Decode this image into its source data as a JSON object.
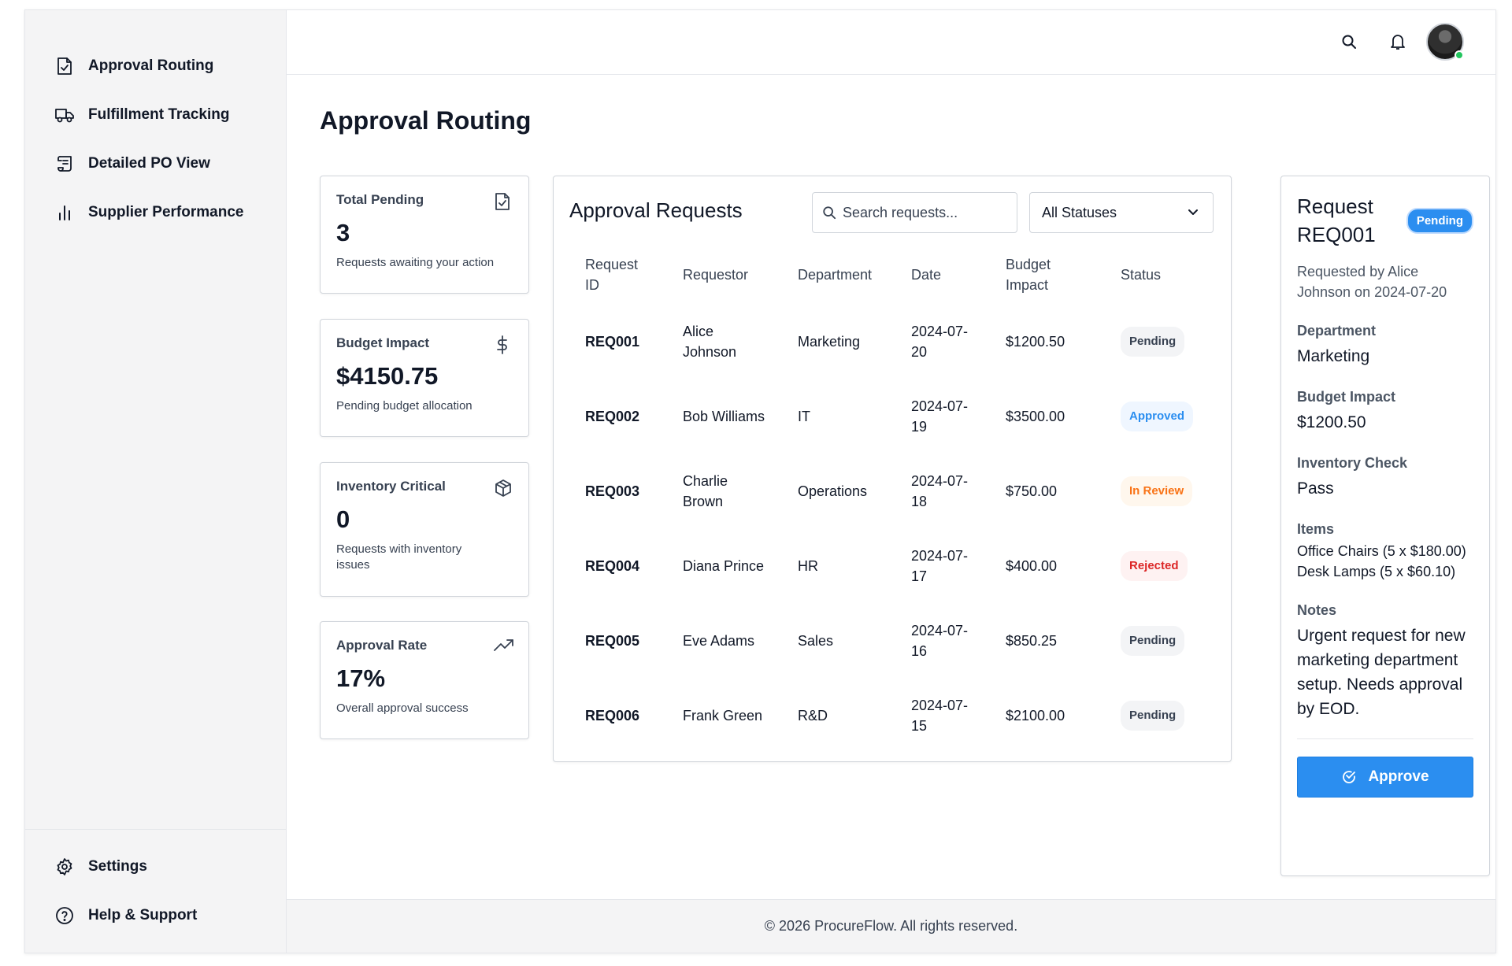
{
  "sidebar": {
    "items": [
      {
        "label": "Approval Routing",
        "icon": "file-check-icon"
      },
      {
        "label": "Fulfillment Tracking",
        "icon": "truck-icon"
      },
      {
        "label": "Detailed PO View",
        "icon": "scroll-icon"
      },
      {
        "label": "Supplier Performance",
        "icon": "bar-chart-icon"
      }
    ],
    "bottom": [
      {
        "label": "Settings",
        "icon": "gear-icon"
      },
      {
        "label": "Help & Support",
        "icon": "help-circle-icon"
      }
    ]
  },
  "header": {
    "search_icon": "search-icon",
    "notifications_icon": "bell-icon",
    "avatar_status_color": "#22c55e"
  },
  "page": {
    "title": "Approval Routing"
  },
  "stats": [
    {
      "title": "Total Pending",
      "value": "3",
      "desc": "Requests awaiting your action",
      "icon": "file-check-icon"
    },
    {
      "title": "Budget Impact",
      "value": "$4150.75",
      "desc": "Pending budget allocation",
      "icon": "dollar-icon"
    },
    {
      "title": "Inventory Critical",
      "value": "0",
      "desc": "Requests with inventory issues",
      "icon": "box-icon"
    },
    {
      "title": "Approval Rate",
      "value": "17%",
      "desc": "Overall approval success",
      "icon": "trending-up-icon"
    }
  ],
  "requests": {
    "title": "Approval Requests",
    "search_placeholder": "Search requests...",
    "status_filter": "All Statuses",
    "columns": [
      "Request ID",
      "Requestor",
      "Department",
      "Date",
      "Budget Impact",
      "Status"
    ],
    "rows": [
      {
        "id": "REQ001",
        "requestor": "Alice Johnson",
        "department": "Marketing",
        "date": "2024-07-20",
        "budget": "$1200.50",
        "status": "Pending"
      },
      {
        "id": "REQ002",
        "requestor": "Bob Williams",
        "department": "IT",
        "date": "2024-07-19",
        "budget": "$3500.00",
        "status": "Approved"
      },
      {
        "id": "REQ003",
        "requestor": "Charlie Brown",
        "department": "Operations",
        "date": "2024-07-18",
        "budget": "$750.00",
        "status": "In Review"
      },
      {
        "id": "REQ004",
        "requestor": "Diana Prince",
        "department": "HR",
        "date": "2024-07-17",
        "budget": "$400.00",
        "status": "Rejected"
      },
      {
        "id": "REQ005",
        "requestor": "Eve Adams",
        "department": "Sales",
        "date": "2024-07-16",
        "budget": "$850.25",
        "status": "Pending"
      },
      {
        "id": "REQ006",
        "requestor": "Frank Green",
        "department": "R&D",
        "date": "2024-07-15",
        "budget": "$2100.00",
        "status": "Pending"
      }
    ]
  },
  "detail": {
    "title": "Request REQ001",
    "status": "Pending",
    "subtitle": "Requested by Alice Johnson on 2024-07-20",
    "department_label": "Department",
    "department": "Marketing",
    "budget_label": "Budget Impact",
    "budget": "$1200.50",
    "inventory_label": "Inventory Check",
    "inventory": "Pass",
    "items_label": "Items",
    "items": [
      "Office Chairs (5 x $180.00)",
      "Desk Lamps (5 x $60.10)"
    ],
    "notes_label": "Notes",
    "notes": "Urgent request for new marketing department setup. Needs approval by EOD.",
    "approve_label": "Approve"
  },
  "footer": {
    "text": "© 2026 ProcureFlow. All rights reserved."
  },
  "colors": {
    "accent": "#2b8ef0",
    "approved": "#2b8ef0",
    "in_review": "#f97316",
    "rejected": "#dc2626"
  }
}
